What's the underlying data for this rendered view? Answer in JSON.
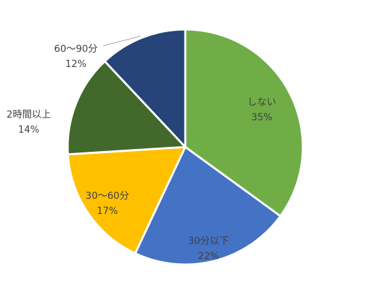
{
  "chart_data": {
    "type": "pie",
    "slices": [
      {
        "label": "しない",
        "percent_label": "35%",
        "value": 35,
        "color": "#70ad47",
        "label_color": "#404040"
      },
      {
        "label": "30分以下",
        "percent_label": "22%",
        "value": 22,
        "color": "#4472c4",
        "label_color": "#404040"
      },
      {
        "label": "30～60分",
        "percent_label": "17%",
        "value": 17,
        "color": "#ffc000",
        "label_color": "#404040"
      },
      {
        "label": "2時間以上",
        "percent_label": "14%",
        "value": 14,
        "color": "#43682b",
        "label_color": "#404040"
      },
      {
        "label": "60～90分",
        "percent_label": "12%",
        "value": 12,
        "color": "#264478",
        "label_color": "#404040"
      }
    ],
    "start_angle": "top, clockwise",
    "legend": "none",
    "slice_border_color": "#ffffff"
  }
}
